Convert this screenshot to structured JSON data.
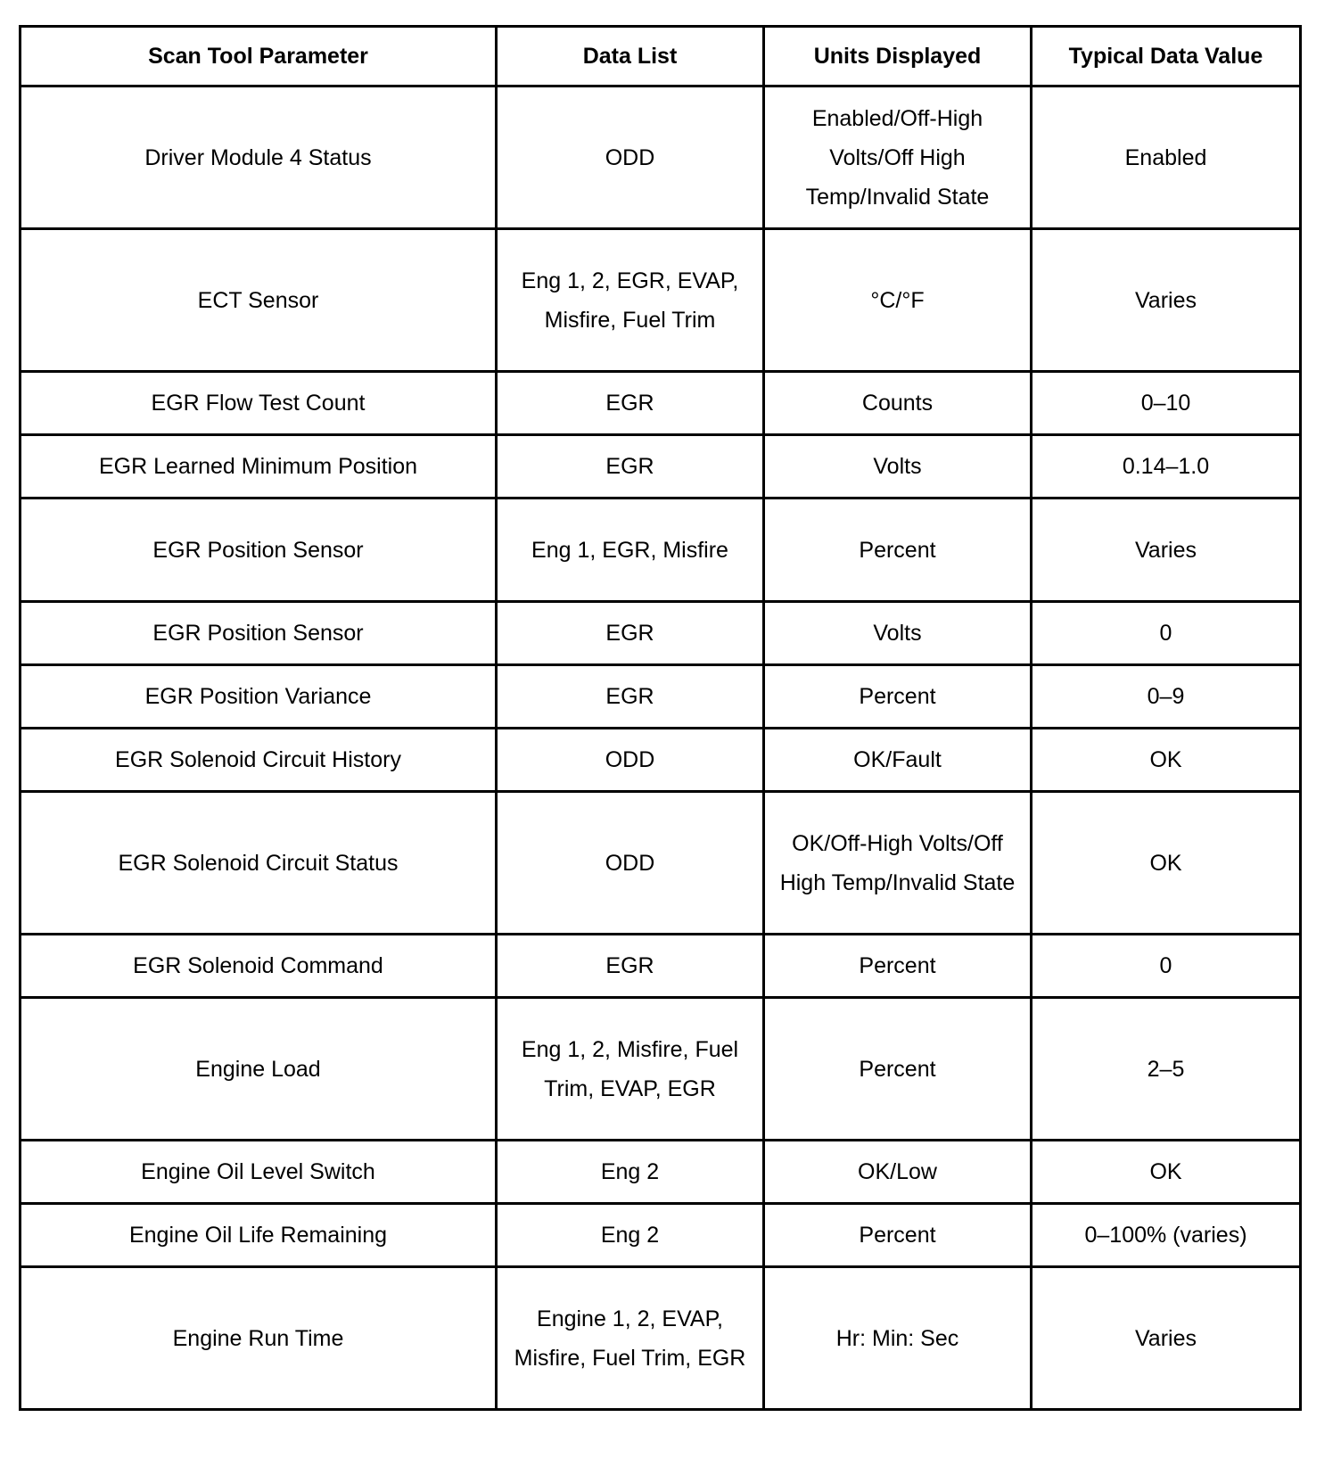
{
  "headers": [
    "Scan Tool Parameter",
    "Data List",
    "Units Displayed",
    "Typical Data Value"
  ],
  "rows": [
    {
      "lines": 3,
      "cells": [
        "Driver Module 4 Status",
        "ODD",
        "Enabled/Off-High Volts/Off High Temp/Invalid State",
        "Enabled"
      ]
    },
    {
      "lines": 3,
      "cells": [
        "ECT Sensor",
        "Eng 1, 2, EGR, EVAP, Misfire, Fuel Trim",
        "°C/°F",
        "Varies"
      ]
    },
    {
      "lines": 1,
      "cells": [
        "EGR Flow Test Count",
        "EGR",
        "Counts",
        "0–10"
      ]
    },
    {
      "lines": 1,
      "cells": [
        "EGR Learned Minimum Position",
        "EGR",
        "Volts",
        "0.14–1.0"
      ]
    },
    {
      "lines": 2,
      "cells": [
        "EGR Position Sensor",
        "Eng 1, EGR, Misfire",
        "Percent",
        "Varies"
      ]
    },
    {
      "lines": 1,
      "cells": [
        "EGR Position Sensor",
        "EGR",
        "Volts",
        "0"
      ]
    },
    {
      "lines": 1,
      "cells": [
        "EGR Position Variance",
        "EGR",
        "Percent",
        "0–9"
      ]
    },
    {
      "lines": 1,
      "cells": [
        "EGR Solenoid Circuit History",
        "ODD",
        "OK/Fault",
        "OK"
      ]
    },
    {
      "lines": 3,
      "cells": [
        "EGR Solenoid Circuit Status",
        "ODD",
        "OK/Off-High Volts/Off High Temp/Invalid State",
        "OK"
      ]
    },
    {
      "lines": 1,
      "cells": [
        "EGR Solenoid Command",
        "EGR",
        "Percent",
        "0"
      ]
    },
    {
      "lines": 3,
      "cells": [
        "Engine Load",
        "Eng 1, 2, Misfire, Fuel Trim, EVAP, EGR",
        "Percent",
        "2–5"
      ]
    },
    {
      "lines": 1,
      "cells": [
        "Engine Oil Level Switch",
        "Eng 2",
        "OK/Low",
        "OK"
      ]
    },
    {
      "lines": 1,
      "cells": [
        "Engine Oil Life Remaining",
        "Eng 2",
        "Percent",
        "0–100% (varies)"
      ]
    },
    {
      "lines": 3,
      "cells": [
        "Engine Run Time",
        "Engine 1, 2, EVAP, Misfire, Fuel Trim, EGR",
        "Hr: Min: Sec",
        "Varies"
      ]
    }
  ]
}
